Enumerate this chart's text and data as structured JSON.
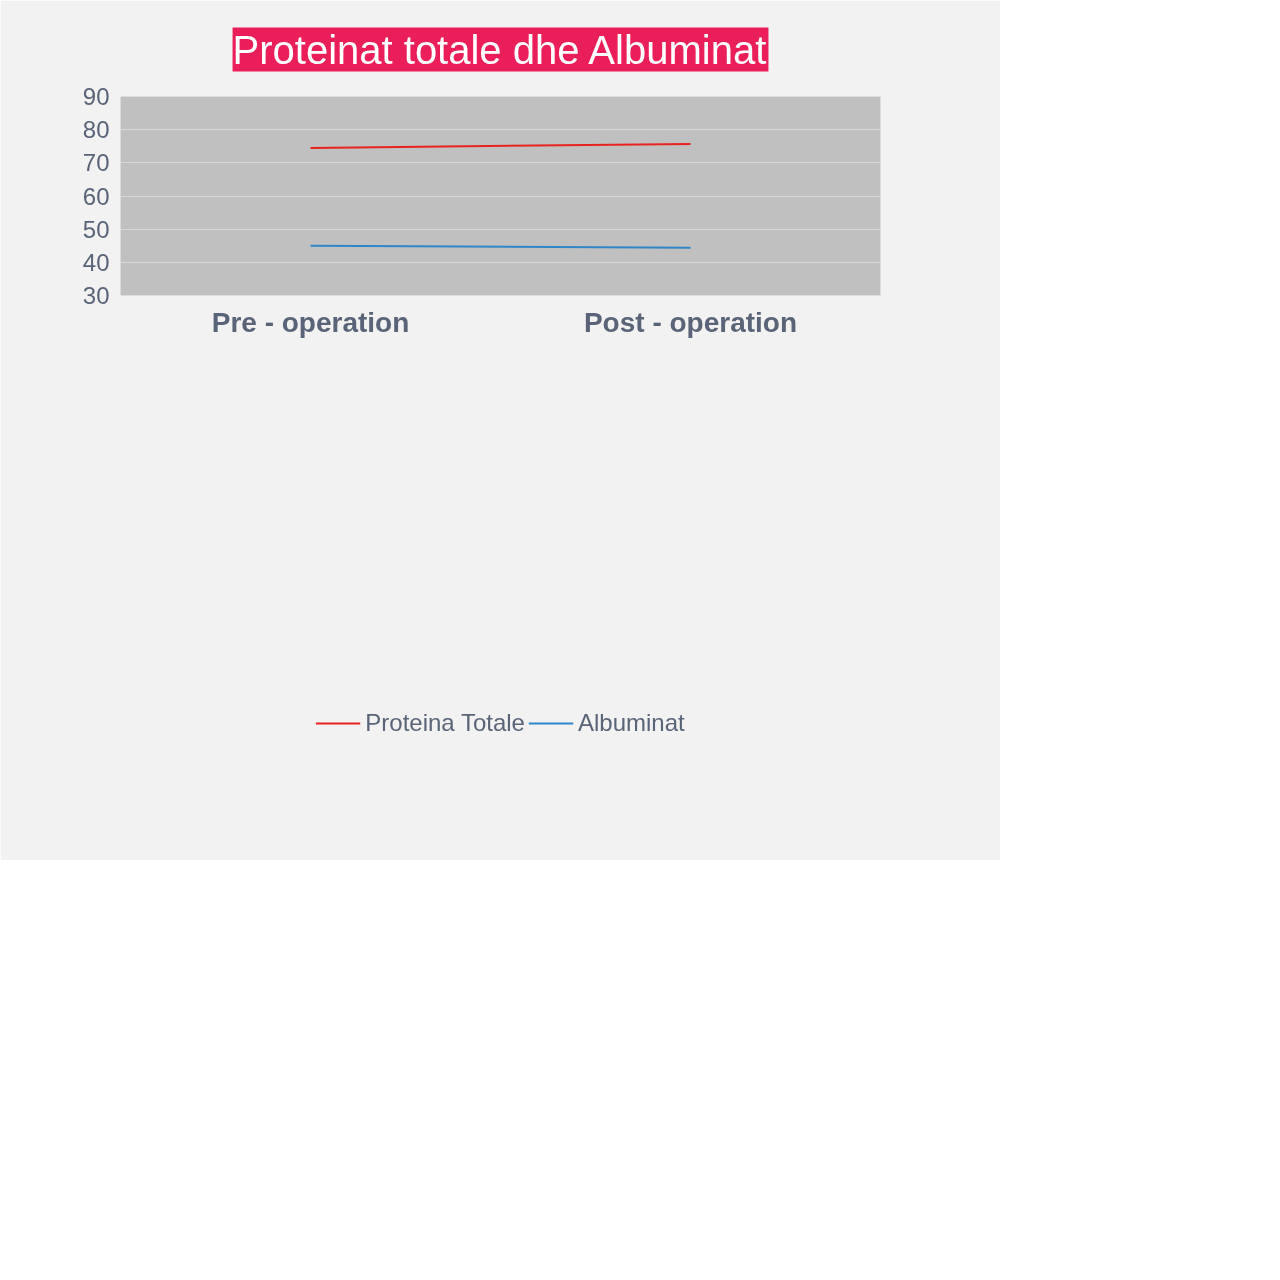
{
  "chart_data": {
    "type": "line",
    "title": "Proteinat totale dhe Albuminat",
    "categories": [
      "Pre - operation",
      "Post - operation"
    ],
    "series": [
      {
        "name": "Proteina Totale",
        "color": "#e8231e",
        "values": [
          74.5,
          75.7
        ]
      },
      {
        "name": "Albuminat",
        "color": "#2e86c8",
        "values": [
          45.0,
          44.4
        ]
      }
    ],
    "ylim": [
      30,
      90
    ],
    "yticks": [
      30,
      40,
      50,
      60,
      70,
      80,
      90
    ],
    "grid": "y",
    "legend": "bottom",
    "marker": "none",
    "line_style": "solid"
  }
}
